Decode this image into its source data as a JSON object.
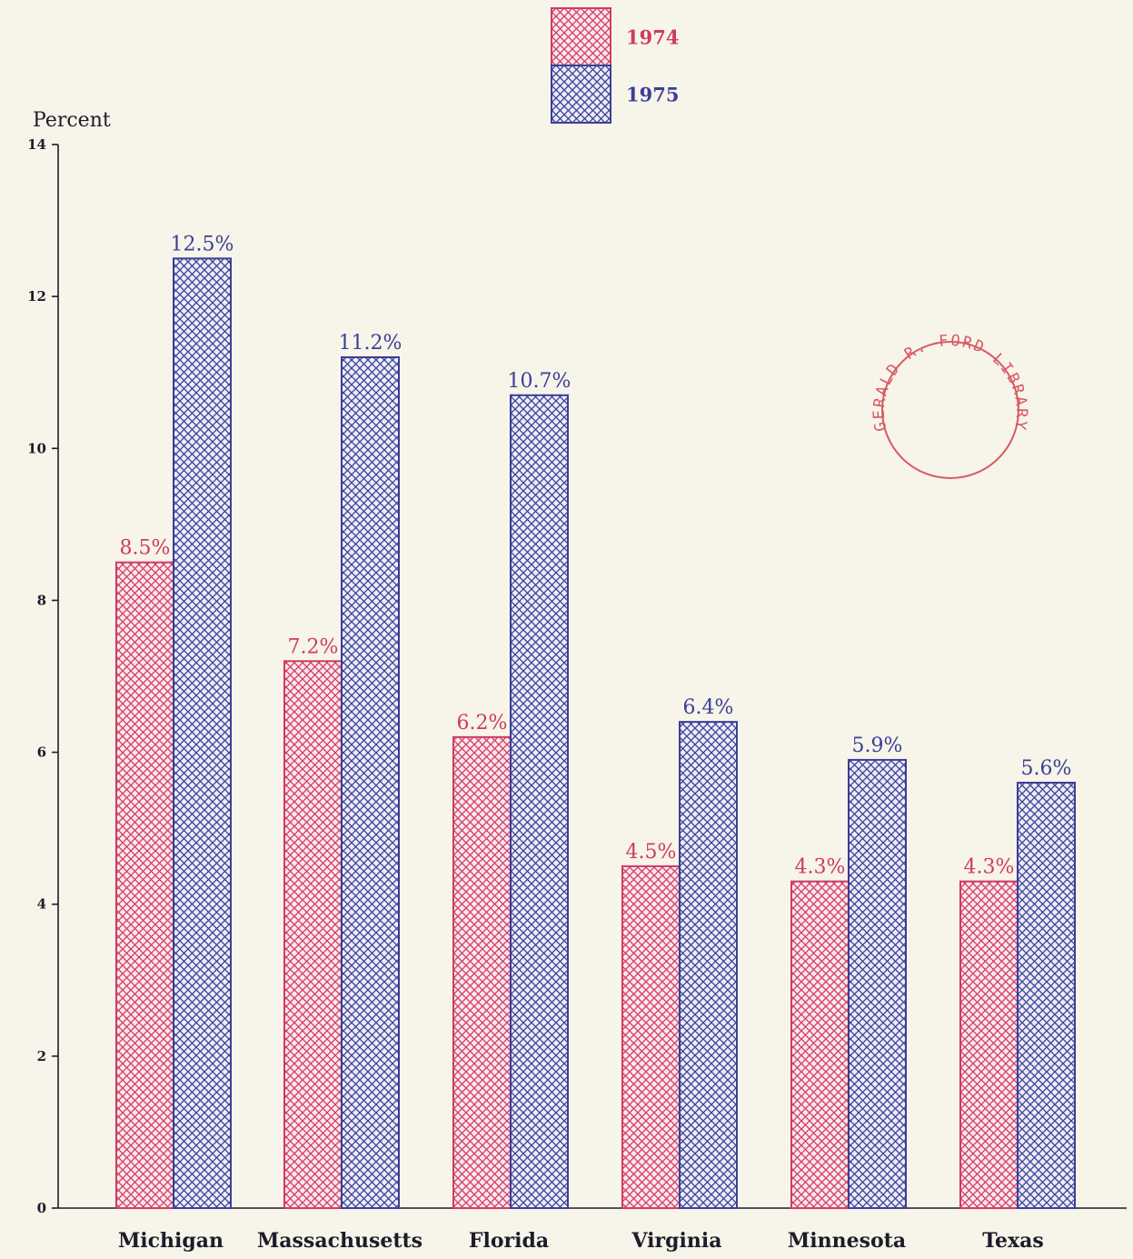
{
  "chart_data": {
    "type": "bar",
    "categories": [
      "Michigan",
      "Massachusetts",
      "Florida",
      "Virginia",
      "Minnesota",
      "Texas"
    ],
    "series": [
      {
        "name": "1974",
        "values": [
          8.5,
          7.2,
          6.2,
          4.5,
          4.3,
          4.3
        ],
        "labels": [
          "8.5%",
          "7.2%",
          "6.2%",
          "4.5%",
          "4.3%",
          "4.3%"
        ]
      },
      {
        "name": "1975",
        "values": [
          12.5,
          11.2,
          10.7,
          6.4,
          5.9,
          5.6
        ],
        "labels": [
          "12.5%",
          "11.2%",
          "10.7%",
          "6.4%",
          "5.9%",
          "5.6%"
        ]
      }
    ],
    "ylabel": "Percent",
    "ylim": [
      0,
      14
    ],
    "yticks": [
      "0",
      "2",
      "4",
      "6",
      "8",
      "10",
      "12",
      "14"
    ],
    "legend_position": "top-center",
    "grid": false
  },
  "colors": {
    "series_1974": "#cf3b62",
    "series_1975": "#3b3f95",
    "axis": "#1c1c2a"
  },
  "stamp": {
    "text": "GERALD R. FORD LIBRARY",
    "color": "#d75a63"
  }
}
